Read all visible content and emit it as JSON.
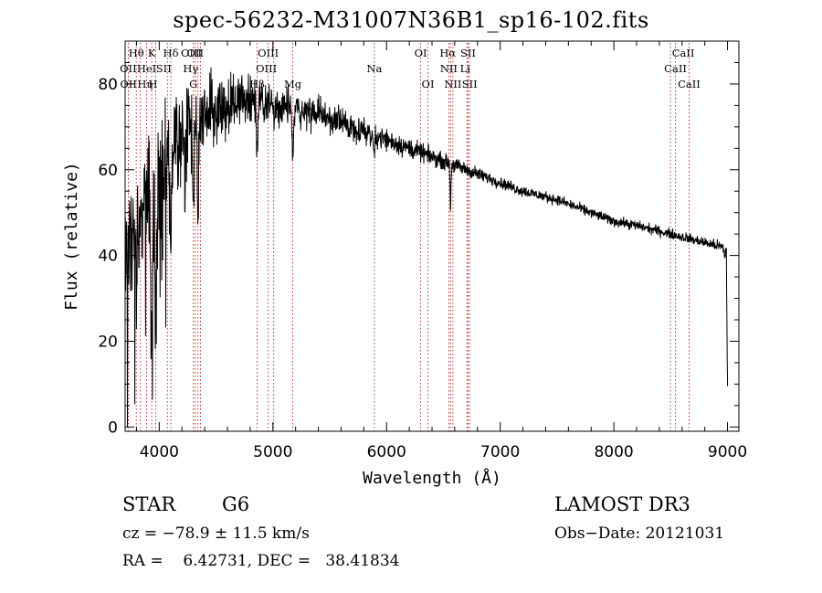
{
  "title": "spec-56232-M31007N36B1_sp16-102.fits",
  "info": {
    "class": "STAR",
    "subclass": "G6",
    "survey": "LAMOST DR3",
    "cz": "cz = −78.9 ± 11.5 km/s",
    "obs_date": "Obs−Date: 20121031",
    "radec": "RA =    6.42731, DEC =   38.41834"
  },
  "chart_data": {
    "type": "line",
    "title": "spec-56232-M31007N36B1_sp16-102.fits",
    "xlabel": "Wavelength (Å)",
    "ylabel": "Flux (relative)",
    "xlim": [
      3700,
      9100
    ],
    "ylim": [
      -1,
      90
    ],
    "x_ticks": [
      4000,
      5000,
      6000,
      7000,
      8000,
      9000
    ],
    "y_ticks": [
      0,
      20,
      40,
      60,
      80
    ],
    "line_color": "#000000",
    "marker_color": "#b22222",
    "continuum": {
      "x": [
        3700,
        3800,
        3900,
        4000,
        4100,
        4200,
        4300,
        4400,
        4500,
        4600,
        4700,
        4800,
        4900,
        5000,
        5200,
        5400,
        5600,
        5800,
        6000,
        6200,
        6400,
        6600,
        6800,
        7000,
        7200,
        7500,
        7800,
        8000,
        8200,
        8500,
        8800,
        8950,
        8990,
        9000
      ],
      "y": [
        40,
        45,
        52,
        58,
        64,
        68,
        70,
        73,
        74,
        75,
        76,
        77,
        76,
        75,
        74,
        73,
        71,
        69,
        67,
        65,
        63,
        61,
        59,
        57,
        55,
        53,
        50,
        48,
        47,
        45,
        43,
        42,
        40,
        10
      ],
      "noise": [
        10,
        10,
        11,
        11,
        10,
        9,
        8,
        7,
        6,
        5.5,
        5,
        4.5,
        4,
        3.5,
        3,
        2.8,
        2.5,
        2.3,
        2,
        1.8,
        1.5,
        1.3,
        1.2,
        1,
        1,
        0.9,
        0.9,
        0.9,
        0.9,
        0.9,
        0.9,
        1,
        2,
        4
      ]
    },
    "absorption": [
      {
        "x": 3934,
        "depth": 35,
        "width": 10
      },
      {
        "x": 3969,
        "depth": 30,
        "width": 10
      },
      {
        "x": 4101,
        "depth": 25,
        "width": 8
      },
      {
        "x": 4227,
        "depth": 15,
        "width": 6
      },
      {
        "x": 4300,
        "depth": 20,
        "width": 8
      },
      {
        "x": 4340,
        "depth": 22,
        "width": 8
      },
      {
        "x": 4861,
        "depth": 12,
        "width": 8
      },
      {
        "x": 5175,
        "depth": 10,
        "width": 10
      },
      {
        "x": 5890,
        "depth": 5,
        "width": 8
      },
      {
        "x": 6563,
        "depth": 10,
        "width": 6
      }
    ],
    "lines": [
      {
        "label": "Hθ",
        "x": 3798,
        "row": 0,
        "dx": 0
      },
      {
        "label": "K",
        "x": 3934,
        "row": 0,
        "dx": 0
      },
      {
        "label": "Hδ",
        "x": 4102,
        "row": 0,
        "dx": 0
      },
      {
        "label": "OII",
        "x": 4317,
        "row": 0,
        "dx": 0
      },
      {
        "label": "OIII",
        "x": 4363,
        "row": 0,
        "dx": -10
      },
      {
        "label": "OIII",
        "x": 4959,
        "row": 0,
        "dx": 0
      },
      {
        "label": "OI",
        "x": 6300,
        "row": 0,
        "dx": 0
      },
      {
        "label": "Hα",
        "x": 6563,
        "row": 0,
        "dx": -3
      },
      {
        "label": "SII",
        "x": 6717,
        "row": 0,
        "dx": 0
      },
      {
        "label": "CaII",
        "x": 8498,
        "row": 0,
        "dx": 14
      },
      {
        "label": "OII",
        "x": 3727,
        "row": 1,
        "dx": 0
      },
      {
        "label": "HeI",
        "x": 3889,
        "row": 1,
        "dx": 0
      },
      {
        "label": "SII",
        "x": 4072,
        "row": 1,
        "dx": -4
      },
      {
        "label": "Hγ",
        "x": 4341,
        "row": 1,
        "dx": -8
      },
      {
        "label": "OIII",
        "x": 5007,
        "row": 1,
        "dx": -8
      },
      {
        "label": "NII",
        "x": 6548,
        "row": 1,
        "dx": 0
      },
      {
        "label": "Li",
        "x": 6708,
        "row": 1,
        "dx": -2
      },
      {
        "label": "CaII",
        "x": 8542,
        "row": 1,
        "dx": 0
      },
      {
        "label": "OII",
        "x": 3729,
        "row": 2,
        "dx": 0
      },
      {
        "label": "Hη",
        "x": 3835,
        "row": 2,
        "dx": 5
      },
      {
        "label": "H",
        "x": 3969,
        "row": 2,
        "dx": -3
      },
      {
        "label": "G",
        "x": 4300,
        "row": 2,
        "dx": 0
      },
      {
        "label": "Hβ",
        "x": 4861,
        "row": 2,
        "dx": 0
      },
      {
        "label": "Mg",
        "x": 5175,
        "row": 2,
        "dx": 0
      },
      {
        "label": "Na",
        "x": 5893,
        "row": 1,
        "dx": 0
      },
      {
        "label": "OI",
        "x": 6364,
        "row": 2,
        "dx": 0
      },
      {
        "label": "NII",
        "x": 6584,
        "row": 2,
        "dx": 0
      },
      {
        "label": "SII",
        "x": 6731,
        "row": 2,
        "dx": 0
      },
      {
        "label": "CaII",
        "x": 8662,
        "row": 2,
        "dx": 0
      }
    ]
  }
}
